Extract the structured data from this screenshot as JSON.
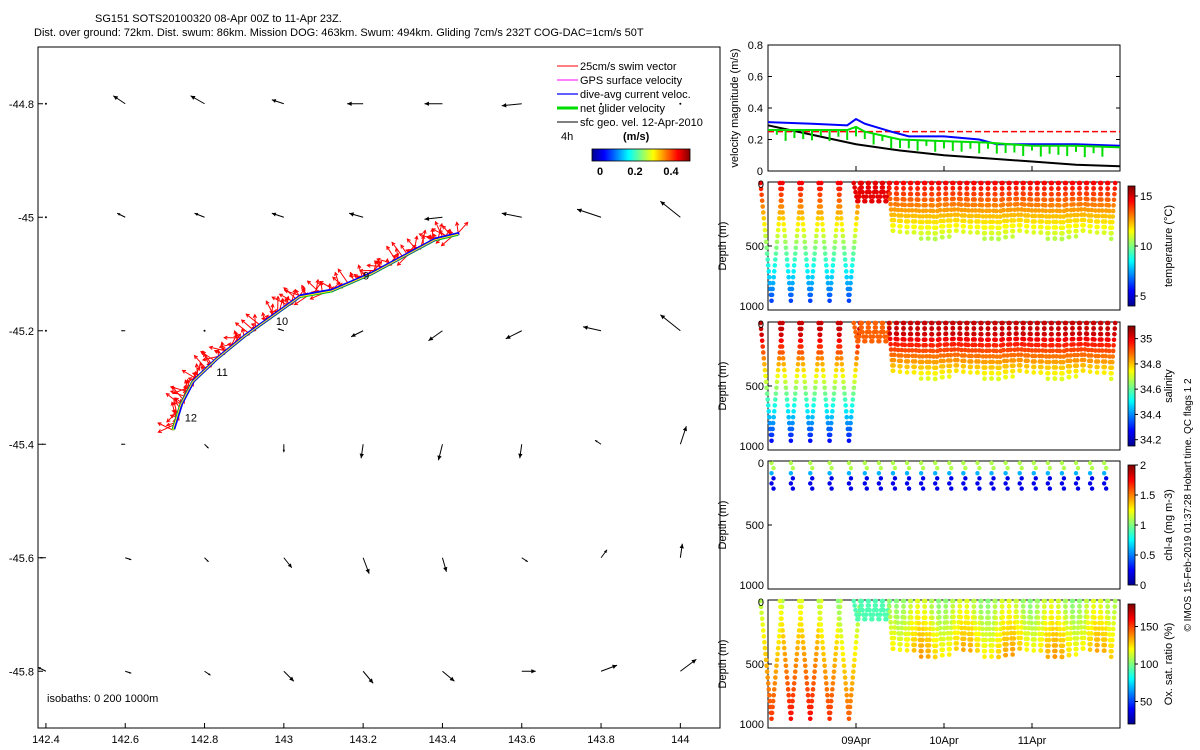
{
  "header": {
    "line1": "SG151 SOTS20100320 08-Apr 00Z to 11-Apr 23Z.",
    "line2": "Dist. over ground: 72km. Dist. swum: 86km. Mission DOG: 463km. Swum: 494km. Gliding 7cm/s 232T COG-DAC=1cm/s 50T"
  },
  "credit": "© IMOS 15-Feb-2019 01:37:28 Hobart time. QC flags 1  2",
  "colors": {
    "swim": "#ff0000",
    "gps": "#ff00ff",
    "dac": "#0000ff",
    "net": "#00dd00",
    "geo": "#000000",
    "track_path": "#ffff00"
  },
  "chart_data": [
    {
      "type": "scatter",
      "title": "",
      "xlim": [
        142.38,
        144.1
      ],
      "ylim": [
        -45.9,
        -44.7
      ],
      "xticks": [
        142.4,
        142.6,
        142.8,
        143,
        143.2,
        143.4,
        143.6,
        143.8,
        144
      ],
      "xtick_labels": [
        "142.4",
        "142.6",
        "142.8",
        "143",
        "143.2",
        "143.4",
        "143.6",
        "143.8",
        "144"
      ],
      "yticks": [
        -44.8,
        -45,
        -45.2,
        -45.4,
        -45.6,
        -45.8
      ],
      "ytick_labels": [
        "-44.8",
        "-45",
        "-45.2",
        "-45.4",
        "-45.6",
        "-45.8"
      ],
      "legend": {
        "placement": "top-right",
        "entries": [
          "25cm/s swim vector",
          "GPS surface velocity",
          "dive-avg current veloc.",
          "net glider velocity",
          "sfc geo. vel. 12-Apr-2010"
        ]
      },
      "colorbar": {
        "label": "(m/s)",
        "ticks": [
          "0",
          "0.2",
          "0.4"
        ],
        "note": "4h"
      },
      "isobaths_label": "isobaths: 0   200  1000m",
      "track_labels": [
        {
          "text": "9",
          "lon": 143.2,
          "lat": -45.11
        },
        {
          "text": "10",
          "lon": 142.98,
          "lat": -45.19
        },
        {
          "text": "11",
          "lon": 142.83,
          "lat": -45.28
        },
        {
          "text": "12",
          "lon": 142.75,
          "lat": -45.36
        }
      ],
      "track": [
        [
          143.44,
          -45.03
        ],
        [
          143.38,
          -45.04
        ],
        [
          143.3,
          -45.07
        ],
        [
          143.22,
          -45.1
        ],
        [
          143.12,
          -45.13
        ],
        [
          143.04,
          -45.14
        ],
        [
          142.98,
          -45.17
        ],
        [
          142.9,
          -45.21
        ],
        [
          142.83,
          -45.25
        ],
        [
          142.77,
          -45.29
        ],
        [
          142.74,
          -45.33
        ],
        [
          142.72,
          -45.375
        ]
      ],
      "geo_vectors_u_v_ms": {
        "lons": [
          142.4,
          142.6,
          142.8,
          143,
          143.2,
          143.4,
          143.6,
          143.8,
          144
        ],
        "lats": [
          -44.8,
          -45,
          -45.2,
          -45.4,
          -45.6,
          -45.8
        ],
        "rows": [
          [
            [
              0,
              0
            ],
            [
              -0.06,
              0.04
            ],
            [
              -0.07,
              0.04
            ],
            [
              -0.06,
              0.02
            ],
            [
              -0.08,
              0
            ],
            [
              -0.09,
              0
            ],
            [
              -0.1,
              -0.01
            ],
            [
              0,
              0
            ],
            [
              0,
              0
            ]
          ],
          [
            [
              0,
              0
            ],
            [
              -0.04,
              0.02
            ],
            [
              -0.05,
              0.02
            ],
            [
              -0.06,
              0.02
            ],
            [
              -0.07,
              0.02
            ],
            [
              -0.09,
              -0.01
            ],
            [
              -0.1,
              0.02
            ],
            [
              -0.12,
              0.04
            ],
            [
              -0.1,
              0.08
            ]
          ],
          [
            [
              0,
              0
            ],
            [
              -0.02,
              0
            ],
            [
              0,
              0
            ],
            [
              -0.03,
              0.01
            ],
            [
              -0.06,
              -0.03
            ],
            [
              -0.07,
              -0.05
            ],
            [
              -0.08,
              -0.04
            ],
            [
              -0.09,
              0.02
            ],
            [
              -0.1,
              0.08
            ]
          ],
          [
            [
              -0.02,
              0
            ],
            [
              -0.02,
              0
            ],
            [
              0.02,
              -0.02
            ],
            [
              0.0,
              -0.04
            ],
            [
              -0.01,
              -0.07
            ],
            [
              -0.02,
              -0.08
            ],
            [
              -0.01,
              -0.07
            ],
            [
              -0.03,
              0.02
            ],
            [
              0.03,
              0.09
            ]
          ],
          [
            [
              -0.03,
              0
            ],
            [
              0.03,
              -0.01
            ],
            [
              0.02,
              -0.02
            ],
            [
              0.04,
              -0.05
            ],
            [
              0.03,
              -0.08
            ],
            [
              0.02,
              -0.07
            ],
            [
              0.03,
              -0.02
            ],
            [
              0.03,
              0.04
            ],
            [
              0.01,
              0.07
            ]
          ],
          [
            [
              -0.04,
              0.02
            ],
            [
              0.03,
              -0.01
            ],
            [
              0.03,
              -0.02
            ],
            [
              0.05,
              -0.05
            ],
            [
              0.05,
              -0.06
            ],
            [
              0.06,
              -0.05
            ],
            [
              0.07,
              0
            ],
            [
              0.08,
              0.03
            ],
            [
              0.08,
              0.06
            ]
          ]
        ]
      }
    },
    {
      "type": "line",
      "xlim": [
        0,
        4
      ],
      "x_date_ticks": [
        "09Apr",
        "10Apr",
        "11Apr"
      ],
      "ylabel": "velocity magnitude (m/s)",
      "ylim": [
        0,
        0.8
      ],
      "yticks": [
        "0",
        "0.2",
        "0.4",
        "0.6",
        "0.8"
      ],
      "series": [
        {
          "name": "25cm/s swim vector",
          "x": [
            0,
            4
          ],
          "y": [
            0.25,
            0.25
          ]
        },
        {
          "name": "dive-avg current veloc.",
          "x": [
            0,
            0.5,
            0.9,
            1.0,
            1.1,
            1.4,
            1.6,
            2.0,
            2.4,
            2.6,
            3.0,
            3.5,
            4.0
          ],
          "y": [
            0.31,
            0.3,
            0.29,
            0.33,
            0.3,
            0.25,
            0.22,
            0.22,
            0.2,
            0.17,
            0.17,
            0.17,
            0.16
          ]
        },
        {
          "name": "sfc geo. vel. 12-Apr-2010",
          "x": [
            0,
            0.5,
            1.0,
            1.5,
            2.0,
            2.5,
            3.0,
            3.5,
            4.0
          ],
          "y": [
            0.29,
            0.23,
            0.17,
            0.13,
            0.1,
            0.08,
            0.06,
            0.04,
            0.03
          ]
        },
        {
          "name": "net glider velocity",
          "x": [
            0,
            0.5,
            0.9,
            1.0,
            1.1,
            1.5,
            2.0,
            2.5,
            3.0,
            3.5,
            4.0
          ],
          "y": [
            0.26,
            0.26,
            0.26,
            0.28,
            0.25,
            0.2,
            0.19,
            0.18,
            0.16,
            0.16,
            0.15
          ]
        }
      ]
    },
    {
      "type": "scatter",
      "ylabel": "Depth (m)",
      "colorbar_label": "temperature (°C)",
      "ylim": [
        1000,
        0
      ],
      "yticks": [
        "0",
        "500",
        "1000"
      ],
      "cticks": [
        "5",
        "10",
        "15"
      ],
      "clim": [
        4,
        16
      ]
    },
    {
      "type": "scatter",
      "ylabel": "Depth (m)",
      "colorbar_label": "salinity",
      "ylim": [
        1000,
        0
      ],
      "yticks": [
        "0",
        "500",
        "1000"
      ],
      "cticks": [
        "34.2",
        "34.4",
        "34.6",
        "34.8",
        "35"
      ],
      "clim": [
        34.15,
        35.1
      ]
    },
    {
      "type": "scatter",
      "ylabel": "Depth (m)",
      "colorbar_label": "chl-a (mg m-3)",
      "ylim": [
        1000,
        0
      ],
      "yticks": [
        "0",
        "500",
        "1000"
      ],
      "cticks": [
        "0",
        "0.5",
        "1",
        "1.5",
        "2"
      ],
      "clim": [
        0,
        2
      ]
    },
    {
      "type": "scatter",
      "ylabel": "Depth (m)",
      "colorbar_label": "Ox. sat. ratio (%)",
      "ylim": [
        1000,
        0
      ],
      "yticks": [
        "0",
        "500",
        "1000"
      ],
      "cticks": [
        "50",
        "100",
        "150"
      ],
      "clim": [
        20,
        180
      ],
      "x_date_ticks": [
        "09Apr",
        "10Apr",
        "11Apr"
      ]
    }
  ]
}
